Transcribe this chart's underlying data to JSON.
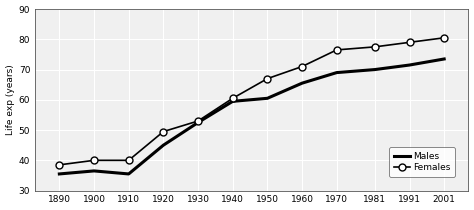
{
  "years": [
    1890,
    1900,
    1910,
    1920,
    1930,
    1940,
    1950,
    1960,
    1970,
    1981,
    1991,
    2001
  ],
  "males": [
    35.5,
    36.5,
    35.5,
    45.0,
    52.5,
    59.5,
    60.5,
    65.5,
    69.0,
    70.0,
    71.5,
    73.5
  ],
  "females": [
    38.5,
    40.0,
    40.0,
    49.5,
    53.0,
    60.5,
    67.0,
    71.0,
    76.5,
    77.5,
    79.0,
    80.5
  ],
  "ylabel": "Life exp (years)",
  "ylim": [
    30,
    90
  ],
  "yticks": [
    30,
    40,
    50,
    60,
    70,
    80,
    90
  ],
  "xlim_left": 1883,
  "xlim_right": 2008,
  "male_color": "#000000",
  "female_color": "#000000",
  "male_linewidth": 2.2,
  "female_linewidth": 1.2,
  "legend_males": "Males",
  "legend_females": "Females",
  "background_color": "#ffffff",
  "plot_bg_color": "#f0f0f0",
  "grid_color": "#ffffff",
  "marker_size": 5
}
